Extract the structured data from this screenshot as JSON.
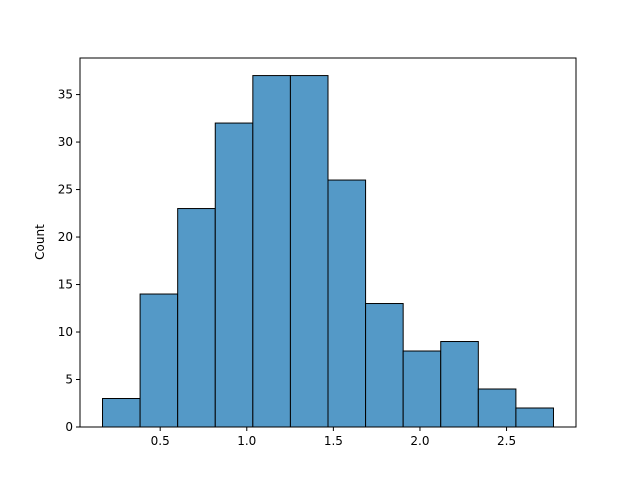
{
  "chart_data": {
    "type": "bar",
    "subtype": "histogram",
    "title": "",
    "xlabel": "",
    "ylabel": "Count",
    "bins": [
      {
        "x0": 0.167,
        "x1": 0.384,
        "count": 3
      },
      {
        "x0": 0.384,
        "x1": 0.601,
        "count": 14
      },
      {
        "x0": 0.601,
        "x1": 0.818,
        "count": 23
      },
      {
        "x0": 0.818,
        "x1": 1.035,
        "count": 32
      },
      {
        "x0": 1.035,
        "x1": 1.252,
        "count": 37
      },
      {
        "x0": 1.252,
        "x1": 1.469,
        "count": 37
      },
      {
        "x0": 1.469,
        "x1": 1.686,
        "count": 26
      },
      {
        "x0": 1.686,
        "x1": 1.903,
        "count": 13
      },
      {
        "x0": 1.903,
        "x1": 2.12,
        "count": 8
      },
      {
        "x0": 2.12,
        "x1": 2.337,
        "count": 9
      },
      {
        "x0": 2.337,
        "x1": 2.554,
        "count": 4
      },
      {
        "x0": 2.554,
        "x1": 2.771,
        "count": 2
      }
    ],
    "xlim": [
      0.037,
      2.901
    ],
    "ylim": [
      0,
      38.85
    ],
    "xticks": [
      0.5,
      1.0,
      1.5,
      2.0,
      2.5
    ],
    "xtick_labels": [
      "0.5",
      "1.0",
      "1.5",
      "2.0",
      "2.5"
    ],
    "yticks": [
      0,
      5,
      10,
      15,
      20,
      25,
      30,
      35
    ],
    "ytick_labels": [
      "0",
      "5",
      "10",
      "15",
      "20",
      "25",
      "30",
      "35"
    ],
    "bar_color": "#5499c7",
    "edge_color": "#000000",
    "grid": false,
    "legend": "none"
  }
}
